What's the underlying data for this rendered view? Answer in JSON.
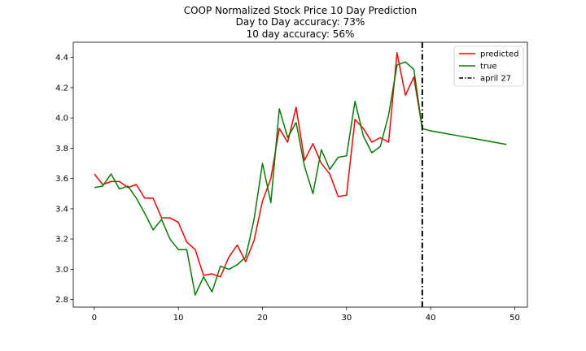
{
  "chart_data": {
    "type": "line",
    "title": [
      "COOP Normalized Stock Price 10 Day Prediction",
      "Day to Day accuracy: 73%",
      "10 day accuracy: 56%"
    ],
    "xlabel": "",
    "ylabel": "",
    "xlim": [
      -2.5,
      51.5
    ],
    "ylim": [
      2.75,
      4.5
    ],
    "xticks": [
      0,
      10,
      20,
      30,
      40,
      50
    ],
    "yticks": [
      2.8,
      3.0,
      3.2,
      3.4,
      3.6,
      3.8,
      4.0,
      4.2,
      4.4
    ],
    "ytick_labels": [
      "2.8",
      "3.0",
      "3.2",
      "3.4",
      "3.6",
      "3.8",
      "4.0",
      "4.2",
      "4.4"
    ],
    "grid": false,
    "legend_position": "top-right",
    "series": [
      {
        "name": "predicted",
        "color": "#ff0000",
        "x": [
          0,
          1,
          2,
          3,
          4,
          5,
          6,
          7,
          8,
          9,
          10,
          11,
          12,
          13,
          14,
          15,
          16,
          17,
          18,
          19,
          20,
          21,
          22,
          23,
          24,
          25,
          26,
          27,
          28,
          29,
          30,
          31,
          32,
          33,
          34,
          35,
          36,
          37,
          38,
          39
        ],
        "values": [
          3.63,
          3.56,
          3.58,
          3.58,
          3.54,
          3.56,
          3.47,
          3.47,
          3.34,
          3.34,
          3.31,
          3.18,
          3.13,
          2.96,
          2.97,
          2.95,
          3.08,
          3.16,
          3.05,
          3.19,
          3.45,
          3.6,
          3.93,
          3.84,
          4.07,
          3.72,
          3.83,
          3.7,
          3.63,
          3.48,
          3.49,
          3.99,
          3.93,
          3.84,
          3.87,
          3.84,
          4.43,
          4.15,
          4.27,
          3.93
        ]
      },
      {
        "name": "true",
        "color": "#008000",
        "x": [
          0,
          1,
          2,
          3,
          4,
          5,
          6,
          7,
          8,
          9,
          10,
          11,
          12,
          13,
          14,
          15,
          16,
          17,
          18,
          19,
          20,
          21,
          22,
          23,
          24,
          25,
          26,
          27,
          28,
          29,
          30,
          31,
          32,
          33,
          34,
          35,
          36,
          37,
          38,
          39,
          40,
          41,
          42,
          43,
          44,
          45,
          46,
          47,
          48,
          49
        ],
        "values": [
          3.54,
          3.55,
          3.63,
          3.53,
          3.55,
          3.47,
          3.37,
          3.26,
          3.33,
          3.2,
          3.13,
          3.13,
          2.83,
          2.95,
          2.85,
          3.02,
          3.0,
          3.03,
          3.08,
          3.33,
          3.7,
          3.44,
          4.06,
          3.87,
          3.97,
          3.68,
          3.5,
          3.79,
          3.66,
          3.74,
          3.75,
          4.11,
          3.88,
          3.77,
          3.81,
          4.02,
          4.35,
          4.37,
          4.32,
          3.93,
          3.915,
          3.905,
          3.895,
          3.885,
          3.875,
          3.865,
          3.855,
          3.845,
          3.835,
          3.825
        ]
      }
    ],
    "vline": {
      "name": "april 27",
      "x": 39,
      "color": "#000000",
      "style": "dash-dot"
    }
  }
}
